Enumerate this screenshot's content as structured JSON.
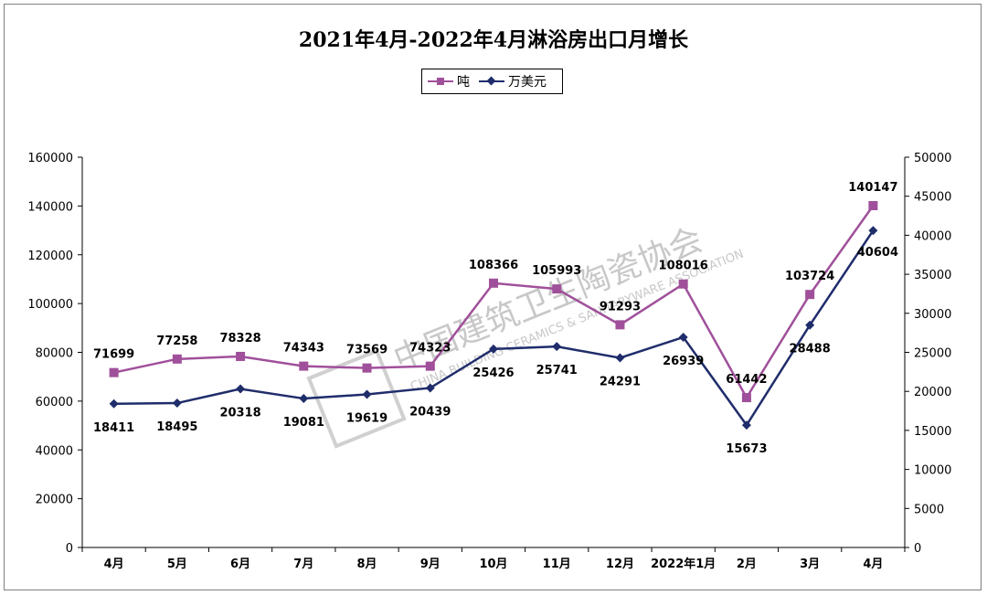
{
  "chart_data": {
    "type": "line",
    "title": "2021年4月-2022年4月淋浴房出口月增长",
    "categories": [
      "4月",
      "5月",
      "6月",
      "7月",
      "8月",
      "9月",
      "10月",
      "11月",
      "12月",
      "2022年1月",
      "2月",
      "3月",
      "4月"
    ],
    "series": [
      {
        "name": "吨",
        "axis": "left",
        "color": "#a0509a",
        "marker": "square",
        "values": [
          71699,
          77258,
          78328,
          74343,
          73569,
          74323,
          108366,
          105993,
          91293,
          108016,
          61442,
          103724,
          140147
        ]
      },
      {
        "name": "万美元",
        "axis": "right",
        "color": "#1f2d6b",
        "marker": "diamond",
        "values": [
          18411,
          18495,
          20318,
          19081,
          19619,
          20439,
          25426,
          25741,
          24291,
          26939,
          15673,
          28488,
          40604
        ]
      }
    ],
    "ylim_left": [
      0,
      160000
    ],
    "ylim_right": [
      0,
      50000
    ],
    "yticks_left": [
      "0",
      "20000",
      "40000",
      "60000",
      "80000",
      "100000",
      "120000",
      "140000",
      "160000"
    ],
    "yticks_right": [
      "0",
      "5000",
      "10000",
      "15000",
      "20000",
      "25000",
      "30000",
      "35000",
      "40000",
      "45000",
      "50000"
    ],
    "grid": false,
    "legend_position": "top-center"
  },
  "watermark": {
    "cn": "中国建筑卫生陶瓷协会",
    "en": "CHINA BUILDING CERAMICS & SANITARYWARE ASSOCIATION"
  }
}
